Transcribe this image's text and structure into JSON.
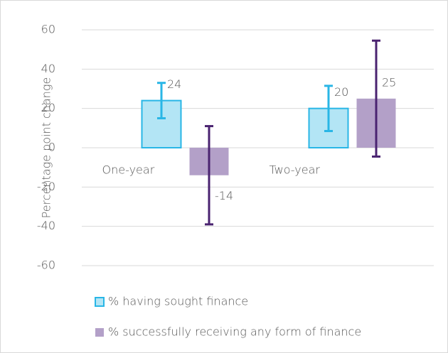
{
  "chart_data": {
    "type": "bar",
    "y_label": "Percentage point change",
    "categories": [
      "One-year",
      "Two-year"
    ],
    "series": [
      {
        "name": "% having sought finance",
        "color": "#b3e5f5",
        "edge_color": "#29b6e6",
        "error_color": "#29b6e6",
        "values": [
          24,
          20
        ],
        "errors": [
          9,
          11.5
        ]
      },
      {
        "name": "% successfully receiving any form of finance",
        "color": "#b3a0c8",
        "error_color": "#4a2370",
        "values": [
          -14,
          25
        ],
        "errors": [
          25,
          29.5
        ]
      }
    ],
    "ylim": [
      -60,
      60
    ],
    "yticks": [
      -60,
      -40,
      -20,
      0,
      20,
      40,
      60
    ],
    "grid": true
  }
}
